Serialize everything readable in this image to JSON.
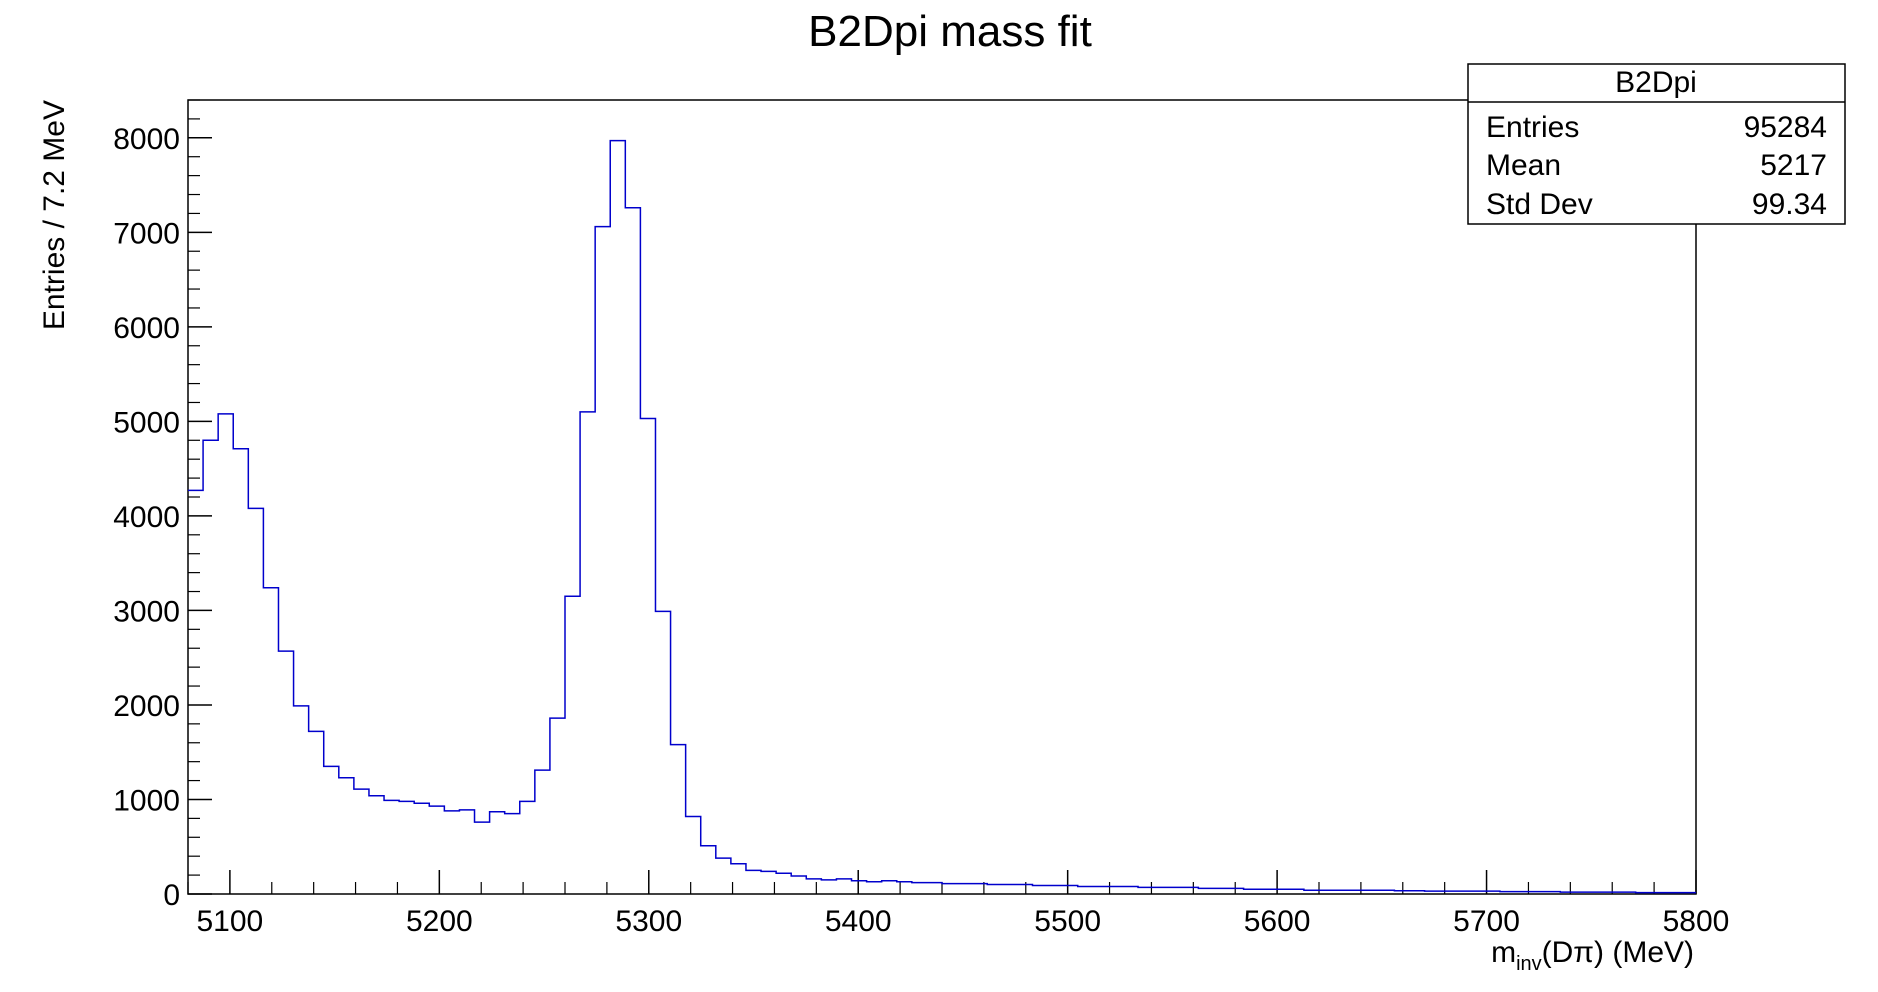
{
  "chart_data": {
    "type": "bar",
    "title": "B2Dpi mass fit",
    "xlabel": {
      "main": "m",
      "sub": "inv",
      "rest": "(Dπ) (MeV)"
    },
    "ylabel": "Entries / 7.2 MeV",
    "xlim": [
      5080,
      5800
    ],
    "ylim": [
      0,
      8400
    ],
    "x_ticks": [
      5100,
      5200,
      5300,
      5400,
      5500,
      5600,
      5700,
      5800
    ],
    "y_ticks": [
      0,
      1000,
      2000,
      3000,
      4000,
      5000,
      6000,
      7000,
      8000
    ],
    "bin_width": 7.2,
    "bins": {
      "x_start": 5080,
      "values": [
        4270,
        4800,
        5080,
        4710,
        4080,
        3240,
        2570,
        1990,
        1720,
        1350,
        1230,
        1110,
        1040,
        990,
        980,
        960,
        930,
        880,
        890,
        760,
        870,
        850,
        980,
        1310,
        1860,
        3150,
        5100,
        7060,
        7970,
        7260,
        5030,
        2990,
        1580,
        820,
        510,
        380,
        320,
        250,
        240,
        220,
        190,
        160,
        150,
        160,
        140,
        130,
        140,
        130,
        120,
        120,
        110,
        110,
        110,
        100,
        100,
        100,
        90,
        90,
        90,
        80,
        80,
        80,
        80,
        70,
        70,
        70,
        70,
        60,
        60,
        60,
        50,
        50,
        50,
        50,
        40,
        40,
        40,
        40,
        40,
        40,
        35,
        35,
        30,
        30,
        30,
        30,
        30,
        25,
        25,
        25,
        25,
        20,
        20,
        20,
        20,
        20,
        15,
        15,
        15,
        15
      ]
    },
    "line_color": "#0000cc",
    "grid": false,
    "legend": "none",
    "stats_box": {
      "placement": "top-right",
      "title": "B2Dpi",
      "rows": [
        {
          "label": "Entries",
          "value": "95284"
        },
        {
          "label": "Mean",
          "value": "5217"
        },
        {
          "label": "Std Dev",
          "value": "99.34"
        }
      ]
    }
  }
}
